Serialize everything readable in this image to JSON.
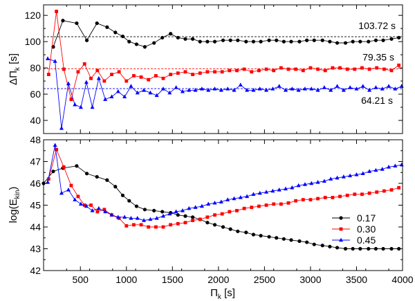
{
  "chart_data": [
    {
      "type": "line",
      "panel": "top",
      "ylabel_main": "ΔΠ",
      "ylabel_sub": "k",
      "ylabel_unit": " [s]",
      "xlim": [
        100,
        4000
      ],
      "ylim": [
        30,
        128
      ],
      "xticks": [
        500,
        1000,
        1500,
        2000,
        2500,
        3000,
        3500,
        4000
      ],
      "yticks": [
        40,
        60,
        80,
        100,
        120
      ],
      "ytick_labels": [
        "40",
        "60",
        "80",
        "100",
        "120"
      ],
      "reference_lines": [
        {
          "value": 103.72,
          "label": "103.72 s",
          "color": "#000000"
        },
        {
          "value": 79.35,
          "label": "79.35 s",
          "color": "#ff0000"
        },
        {
          "value": 64.21,
          "label": "64.21 s",
          "color": "#0000ff"
        }
      ],
      "series": [
        {
          "name": "0.17",
          "color": "#000000",
          "marker": "circle",
          "x": [
            205,
            310,
            460,
            570,
            680,
            790,
            880,
            960,
            1030,
            1110,
            1200,
            1300,
            1390,
            1480,
            1560,
            1640,
            1720,
            1800,
            1880,
            1960,
            2050,
            2130,
            2210,
            2300,
            2380,
            2460,
            2550,
            2630,
            2710,
            2790,
            2880,
            2960,
            3040,
            3130,
            3210,
            3290,
            3380,
            3460,
            3540,
            3630,
            3710,
            3790,
            3880,
            3960
          ],
          "y": [
            96,
            116,
            114,
            101,
            114,
            111,
            107,
            104,
            100,
            98,
            96,
            99,
            103,
            106,
            103,
            102,
            102,
            100,
            100,
            100,
            101,
            101,
            101,
            100,
            100,
            100,
            101,
            101,
            100,
            100,
            100,
            101,
            101,
            101,
            100,
            99,
            99,
            100,
            100,
            100,
            101,
            101,
            102,
            103
          ]
        },
        {
          "name": "0.30",
          "color": "#ff0000",
          "marker": "square",
          "x": [
            155,
            240,
            320,
            400,
            475,
            545,
            615,
            685,
            760,
            840,
            920,
            1000,
            1080,
            1160,
            1240,
            1320,
            1400,
            1480,
            1560,
            1640,
            1720,
            1800,
            1880,
            1960,
            2040,
            2120,
            2200,
            2280,
            2360,
            2440,
            2520,
            2600,
            2680,
            2760,
            2840,
            2920,
            3000,
            3080,
            3160,
            3240,
            3320,
            3400,
            3480,
            3560,
            3640,
            3720,
            3800,
            3880,
            3960
          ],
          "y": [
            75,
            123,
            79,
            56,
            77,
            83,
            72,
            78,
            70,
            75,
            77,
            70,
            74,
            73,
            71,
            74,
            72,
            75,
            76,
            77,
            75,
            76,
            77,
            77,
            77,
            78,
            78,
            79,
            77,
            78,
            79,
            78,
            80,
            79,
            79,
            78,
            80,
            79,
            78,
            80,
            80,
            79,
            79,
            80,
            79,
            80,
            79,
            78,
            82
          ]
        },
        {
          "name": "0.45",
          "color": "#0000ff",
          "marker": "triangle",
          "x": [
            145,
            225,
            295,
            370,
            440,
            505,
            565,
            630,
            700,
            770,
            840,
            910,
            980,
            1050,
            1120,
            1190,
            1260,
            1330,
            1400,
            1470,
            1540,
            1610,
            1680,
            1750,
            1820,
            1890,
            1960,
            2030,
            2100,
            2170,
            2240,
            2310,
            2380,
            2450,
            2520,
            2590,
            2660,
            2730,
            2800,
            2870,
            2940,
            3010,
            3080,
            3150,
            3220,
            3290,
            3360,
            3430,
            3500,
            3570,
            3640,
            3710,
            3780,
            3850,
            3920,
            3990
          ],
          "y": [
            87,
            85,
            34,
            68,
            52,
            50,
            69,
            50,
            72,
            56,
            58,
            62,
            58,
            66,
            61,
            63,
            61,
            59,
            64,
            61,
            65,
            62,
            63,
            63,
            64,
            63,
            64,
            63,
            64,
            63,
            67,
            63,
            63,
            64,
            63,
            64,
            66,
            63,
            64,
            63,
            64,
            64,
            63,
            65,
            63,
            66,
            63,
            65,
            64,
            66,
            63,
            65,
            64,
            66,
            64,
            66
          ]
        }
      ]
    },
    {
      "type": "line",
      "panel": "bottom",
      "ylabel_main": "log(E",
      "ylabel_sub": "kin",
      "ylabel_unit": ")",
      "xlabel_main": "Π",
      "xlabel_sub": "k",
      "xlabel_unit": " [s]",
      "xlim": [
        100,
        4000
      ],
      "ylim": [
        42,
        48
      ],
      "xticks": [
        500,
        1000,
        1500,
        2000,
        2500,
        3000,
        3500,
        4000
      ],
      "xtick_labels": [
        "500",
        "1000",
        "1500",
        "2000",
        "2500",
        "3000",
        "3500",
        "4000"
      ],
      "yticks": [
        42,
        43,
        44,
        45,
        46,
        47,
        48
      ],
      "ytick_labels": [
        "42",
        "43",
        "44",
        "45",
        "46",
        "47",
        "48"
      ],
      "legend_position": "right-center",
      "series": [
        {
          "name": "0.17",
          "color": "#000000",
          "marker": "circle",
          "x": [
            100,
            205,
            310,
            460,
            570,
            680,
            790,
            880,
            960,
            1030,
            1110,
            1200,
            1300,
            1390,
            1480,
            1560,
            1640,
            1720,
            1800,
            1880,
            1960,
            2050,
            2130,
            2210,
            2300,
            2380,
            2460,
            2550,
            2630,
            2710,
            2790,
            2880,
            2960,
            3040,
            3130,
            3210,
            3290,
            3380,
            3460,
            3540,
            3630,
            3710,
            3790,
            3880,
            3960
          ],
          "y": [
            46.0,
            46.55,
            46.7,
            46.8,
            46.45,
            46.3,
            46.15,
            45.85,
            45.45,
            45.2,
            44.95,
            44.8,
            44.75,
            44.7,
            44.65,
            44.55,
            44.5,
            44.45,
            44.35,
            44.2,
            44.1,
            44.0,
            43.9,
            43.8,
            43.75,
            43.65,
            43.6,
            43.55,
            43.5,
            43.45,
            43.4,
            43.35,
            43.3,
            43.2,
            43.15,
            43.1,
            43.05,
            43.0,
            43.0,
            43.0,
            43.0,
            43.0,
            43.0,
            43.0,
            43.0
          ]
        },
        {
          "name": "0.30",
          "color": "#ff0000",
          "marker": "square",
          "x": [
            155,
            240,
            320,
            400,
            475,
            545,
            615,
            685,
            760,
            840,
            920,
            1000,
            1080,
            1160,
            1240,
            1320,
            1400,
            1480,
            1560,
            1640,
            1720,
            1800,
            1880,
            1960,
            2040,
            2120,
            2200,
            2280,
            2360,
            2440,
            2520,
            2600,
            2680,
            2760,
            2840,
            2920,
            3000,
            3080,
            3160,
            3240,
            3320,
            3400,
            3480,
            3560,
            3640,
            3720,
            3800,
            3880,
            3960
          ],
          "y": [
            46.2,
            47.55,
            46.75,
            45.9,
            45.4,
            45.0,
            45.0,
            44.7,
            44.8,
            44.55,
            44.4,
            44.05,
            44.1,
            44.1,
            44.0,
            44.0,
            44.0,
            44.1,
            44.15,
            44.2,
            44.3,
            44.35,
            44.45,
            44.55,
            44.6,
            44.7,
            44.75,
            44.85,
            44.9,
            44.95,
            45.0,
            45.05,
            45.05,
            45.1,
            45.2,
            45.25,
            45.25,
            45.3,
            45.35,
            45.35,
            45.4,
            45.45,
            45.5,
            45.5,
            45.55,
            45.6,
            45.65,
            45.7,
            45.8
          ]
        },
        {
          "name": "0.45",
          "color": "#0000ff",
          "marker": "triangle",
          "x": [
            145,
            225,
            295,
            370,
            440,
            505,
            565,
            630,
            700,
            770,
            840,
            910,
            980,
            1050,
            1120,
            1190,
            1260,
            1330,
            1400,
            1470,
            1540,
            1610,
            1680,
            1750,
            1820,
            1890,
            1960,
            2030,
            2100,
            2170,
            2240,
            2310,
            2380,
            2450,
            2520,
            2590,
            2660,
            2730,
            2800,
            2870,
            2940,
            3010,
            3080,
            3150,
            3220,
            3290,
            3360,
            3430,
            3500,
            3570,
            3640,
            3710,
            3780,
            3850,
            3920,
            3990
          ],
          "y": [
            46.05,
            47.75,
            45.55,
            45.7,
            45.25,
            45.05,
            44.95,
            44.75,
            44.85,
            44.7,
            44.55,
            44.45,
            44.45,
            44.4,
            44.4,
            44.3,
            44.35,
            44.4,
            44.5,
            44.6,
            44.7,
            44.75,
            44.85,
            44.9,
            44.95,
            45.05,
            45.1,
            45.15,
            45.25,
            45.3,
            45.35,
            45.4,
            45.5,
            45.55,
            45.6,
            45.65,
            45.7,
            45.75,
            45.8,
            45.9,
            45.95,
            46.0,
            46.05,
            46.1,
            46.2,
            46.25,
            46.3,
            46.35,
            46.4,
            46.45,
            46.55,
            46.6,
            46.65,
            46.75,
            46.8,
            46.85
          ]
        }
      ]
    }
  ]
}
